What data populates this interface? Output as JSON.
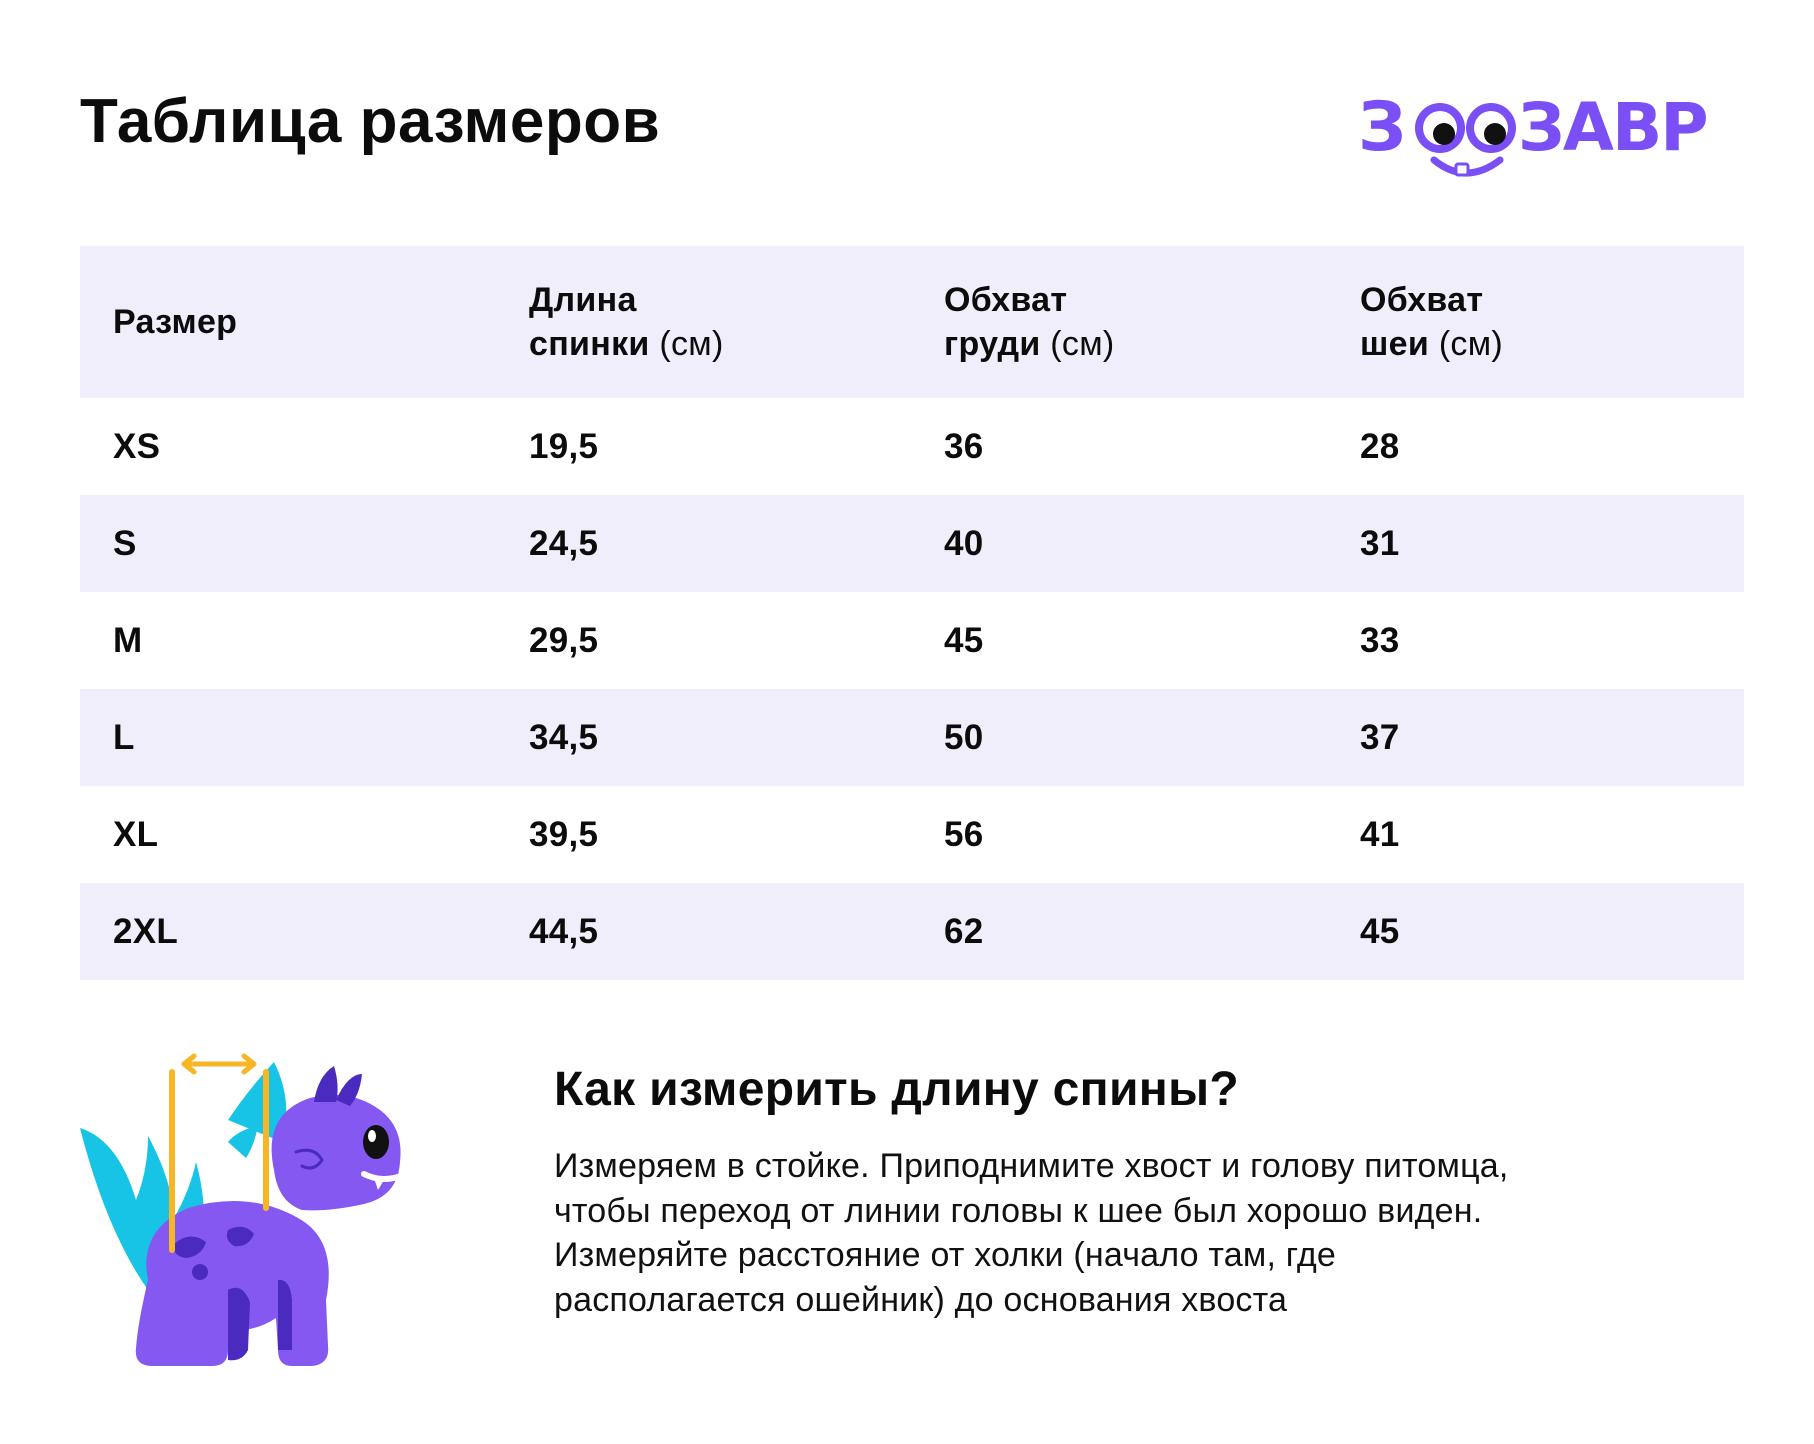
{
  "header": {
    "title": "Таблица размеров",
    "brand": "ЗООЗАВР"
  },
  "colors": {
    "brand_purple": "#7a4ff5",
    "row_shade": "#f1eefc",
    "measure_line": "#f6b625",
    "dino_body": "#8558f2",
    "dino_spikes": "#18c4e6",
    "dino_dark": "#4b2bbf"
  },
  "table": {
    "columns": [
      {
        "label_bold": "Размер",
        "label_bold_line2": "",
        "unit": ""
      },
      {
        "label_bold": "Длина",
        "label_bold_line2": "спинки",
        "unit": "(см)"
      },
      {
        "label_bold": "Обхват",
        "label_bold_line2": "груди",
        "unit": "(см)"
      },
      {
        "label_bold": "Обхват",
        "label_bold_line2": "шеи",
        "unit": "(см)"
      }
    ],
    "rows": [
      {
        "size": "XS",
        "back": "19,5",
        "chest": "36",
        "neck": "28"
      },
      {
        "size": "S",
        "back": "24,5",
        "chest": "40",
        "neck": "31"
      },
      {
        "size": "M",
        "back": "29,5",
        "chest": "45",
        "neck": "33"
      },
      {
        "size": "L",
        "back": "34,5",
        "chest": "50",
        "neck": "37"
      },
      {
        "size": "XL",
        "back": "39,5",
        "chest": "56",
        "neck": "41"
      },
      {
        "size": "2XL",
        "back": "44,5",
        "chest": "62",
        "neck": "45"
      }
    ]
  },
  "howto": {
    "title": "Как измерить длину спины?",
    "text": "Измеряем в стойке. Приподнимите хвост и голову питомца, чтобы переход от линии головы к шее был хорошо виден. Измеряйте расстояние от холки (начало там, где располагается ошейник) до основания хвоста"
  },
  "icons": {
    "illustration": "dinosaur-measure-illustration",
    "logo": "zoozavr-logo"
  }
}
